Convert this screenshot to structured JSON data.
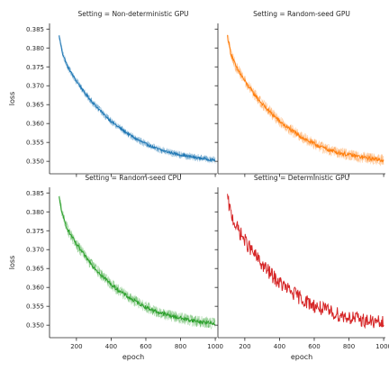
{
  "chart_data": {
    "type": "line",
    "facet_var": "Setting",
    "xlabel": "epoch",
    "ylabel": "loss",
    "xlim": [
      45,
      1010
    ],
    "ylim": [
      0.3467,
      0.3865
    ],
    "xticks": [
      200,
      400,
      600,
      800,
      1000
    ],
    "yticks": [
      0.35,
      0.355,
      0.36,
      0.365,
      0.37,
      0.375,
      0.38,
      0.385
    ],
    "ytick_labels": [
      "0.350",
      "0.355",
      "0.360",
      "0.365",
      "0.370",
      "0.375",
      "0.380",
      "0.385"
    ],
    "grid": false,
    "legend": "none",
    "panels": [
      {
        "title": "Setting = Non-deterministic GPU",
        "color": "#1f77b4",
        "band": true,
        "x": [
          100,
          120,
          150,
          200,
          250,
          300,
          350,
          400,
          450,
          500,
          550,
          600,
          650,
          700,
          750,
          800,
          850,
          900,
          950,
          1000
        ],
        "mean": [
          0.3832,
          0.3785,
          0.375,
          0.3712,
          0.368,
          0.3652,
          0.3628,
          0.3606,
          0.3588,
          0.3572,
          0.3558,
          0.3546,
          0.3536,
          0.3528,
          0.3522,
          0.3517,
          0.3513,
          0.3509,
          0.3506,
          0.3503
        ],
        "spread": 0.0009
      },
      {
        "title": "Setting = Random-seed GPU",
        "color": "#ff7f0e",
        "band": true,
        "x": [
          100,
          120,
          150,
          200,
          250,
          300,
          350,
          400,
          450,
          500,
          550,
          600,
          650,
          700,
          750,
          800,
          850,
          900,
          950,
          1000
        ],
        "mean": [
          0.3832,
          0.3785,
          0.375,
          0.3712,
          0.368,
          0.3652,
          0.3628,
          0.3606,
          0.3588,
          0.3572,
          0.3558,
          0.3546,
          0.3536,
          0.3528,
          0.3522,
          0.3517,
          0.3513,
          0.3509,
          0.3506,
          0.3503
        ],
        "spread": 0.0014
      },
      {
        "title": "Setting = Random-seed CPU",
        "color": "#2ca02c",
        "band": true,
        "x": [
          100,
          120,
          150,
          200,
          250,
          300,
          350,
          400,
          450,
          500,
          550,
          600,
          650,
          700,
          750,
          800,
          850,
          900,
          950,
          1000
        ],
        "mean": [
          0.3838,
          0.379,
          0.3752,
          0.3714,
          0.3682,
          0.3654,
          0.363,
          0.3608,
          0.359,
          0.3574,
          0.356,
          0.3548,
          0.3538,
          0.353,
          0.3524,
          0.3519,
          0.3514,
          0.351,
          0.3507,
          0.3504
        ],
        "spread": 0.0014
      },
      {
        "title": "Setting = Deterministic GPU",
        "color": "#d62728",
        "band": false,
        "x": [
          100,
          120,
          150,
          200,
          250,
          300,
          350,
          400,
          450,
          500,
          550,
          600,
          650,
          700,
          750,
          800,
          850,
          900,
          950,
          1000
        ],
        "mean": [
          0.3835,
          0.3795,
          0.3762,
          0.3724,
          0.369,
          0.366,
          0.3635,
          0.3612,
          0.3594,
          0.3578,
          0.3564,
          0.3552,
          0.3542,
          0.3534,
          0.3527,
          0.3521,
          0.3516,
          0.3512,
          0.3508,
          0.3505
        ],
        "spread": 0.0016
      }
    ]
  }
}
